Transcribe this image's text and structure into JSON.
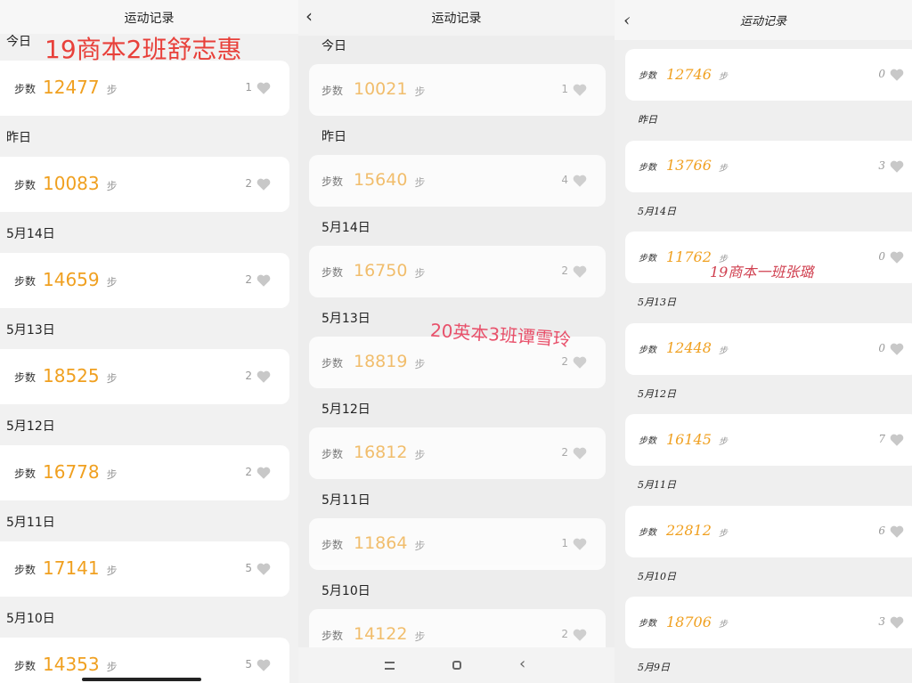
{
  "panels": [
    {
      "title": "运动记录",
      "annotation": "19商本2班舒志惠",
      "rows": [
        {
          "date": "今日"
        },
        {
          "label": "步数",
          "steps": 12477,
          "unit": "步",
          "likes": 1
        },
        {
          "date": "昨日"
        },
        {
          "label": "步数",
          "steps": 10083,
          "unit": "步",
          "likes": 2
        },
        {
          "date": "5月14日"
        },
        {
          "label": "步数",
          "steps": 14659,
          "unit": "步",
          "likes": 2
        },
        {
          "date": "5月13日"
        },
        {
          "label": "步数",
          "steps": 18525,
          "unit": "步",
          "likes": 2
        },
        {
          "date": "5月12日"
        },
        {
          "label": "步数",
          "steps": 16778,
          "unit": "步",
          "likes": 2
        },
        {
          "date": "5月11日"
        },
        {
          "label": "步数",
          "steps": 17141,
          "unit": "步",
          "likes": 5
        },
        {
          "date": "5月10日"
        },
        {
          "label": "步数",
          "steps": 14353,
          "unit": "步",
          "likes": 5
        }
      ]
    },
    {
      "title": "运动记录",
      "annotation": "20英本3班谭雪玲",
      "rows": [
        {
          "date": "今日"
        },
        {
          "label": "步数",
          "steps": 10021,
          "unit": "步",
          "likes": 1
        },
        {
          "date": "昨日"
        },
        {
          "label": "步数",
          "steps": 15640,
          "unit": "步",
          "likes": 4
        },
        {
          "date": "5月14日"
        },
        {
          "label": "步数",
          "steps": 16750,
          "unit": "步",
          "likes": 2
        },
        {
          "date": "5月13日"
        },
        {
          "label": "步数",
          "steps": 18819,
          "unit": "步",
          "likes": 2
        },
        {
          "date": "5月12日"
        },
        {
          "label": "步数",
          "steps": 16812,
          "unit": "步",
          "likes": 2
        },
        {
          "date": "5月11日"
        },
        {
          "label": "步数",
          "steps": 11864,
          "unit": "步",
          "likes": 1
        },
        {
          "date": "5月10日"
        },
        {
          "label": "步数",
          "steps": 14122,
          "unit": "步",
          "likes": 2
        }
      ]
    },
    {
      "title": "运动记录",
      "annotation": "19商本一班张璐",
      "rows": [
        {
          "label": "步数",
          "steps": 12746,
          "unit": "步",
          "likes": 0
        },
        {
          "date": "昨日"
        },
        {
          "label": "步数",
          "steps": 13766,
          "unit": "步",
          "likes": 3
        },
        {
          "date": "5月14日"
        },
        {
          "label": "步数",
          "steps": 11762,
          "unit": "步",
          "likes": 0
        },
        {
          "date": "5月13日"
        },
        {
          "label": "步数",
          "steps": 12448,
          "unit": "步",
          "likes": 0
        },
        {
          "date": "5月12日"
        },
        {
          "label": "步数",
          "steps": 16145,
          "unit": "步",
          "likes": 7
        },
        {
          "date": "5月11日"
        },
        {
          "label": "步数",
          "steps": 22812,
          "unit": "步",
          "likes": 6
        },
        {
          "date": "5月10日"
        },
        {
          "label": "步数",
          "steps": 18706,
          "unit": "步",
          "likes": 3
        },
        {
          "date": "5月9日"
        }
      ]
    }
  ]
}
